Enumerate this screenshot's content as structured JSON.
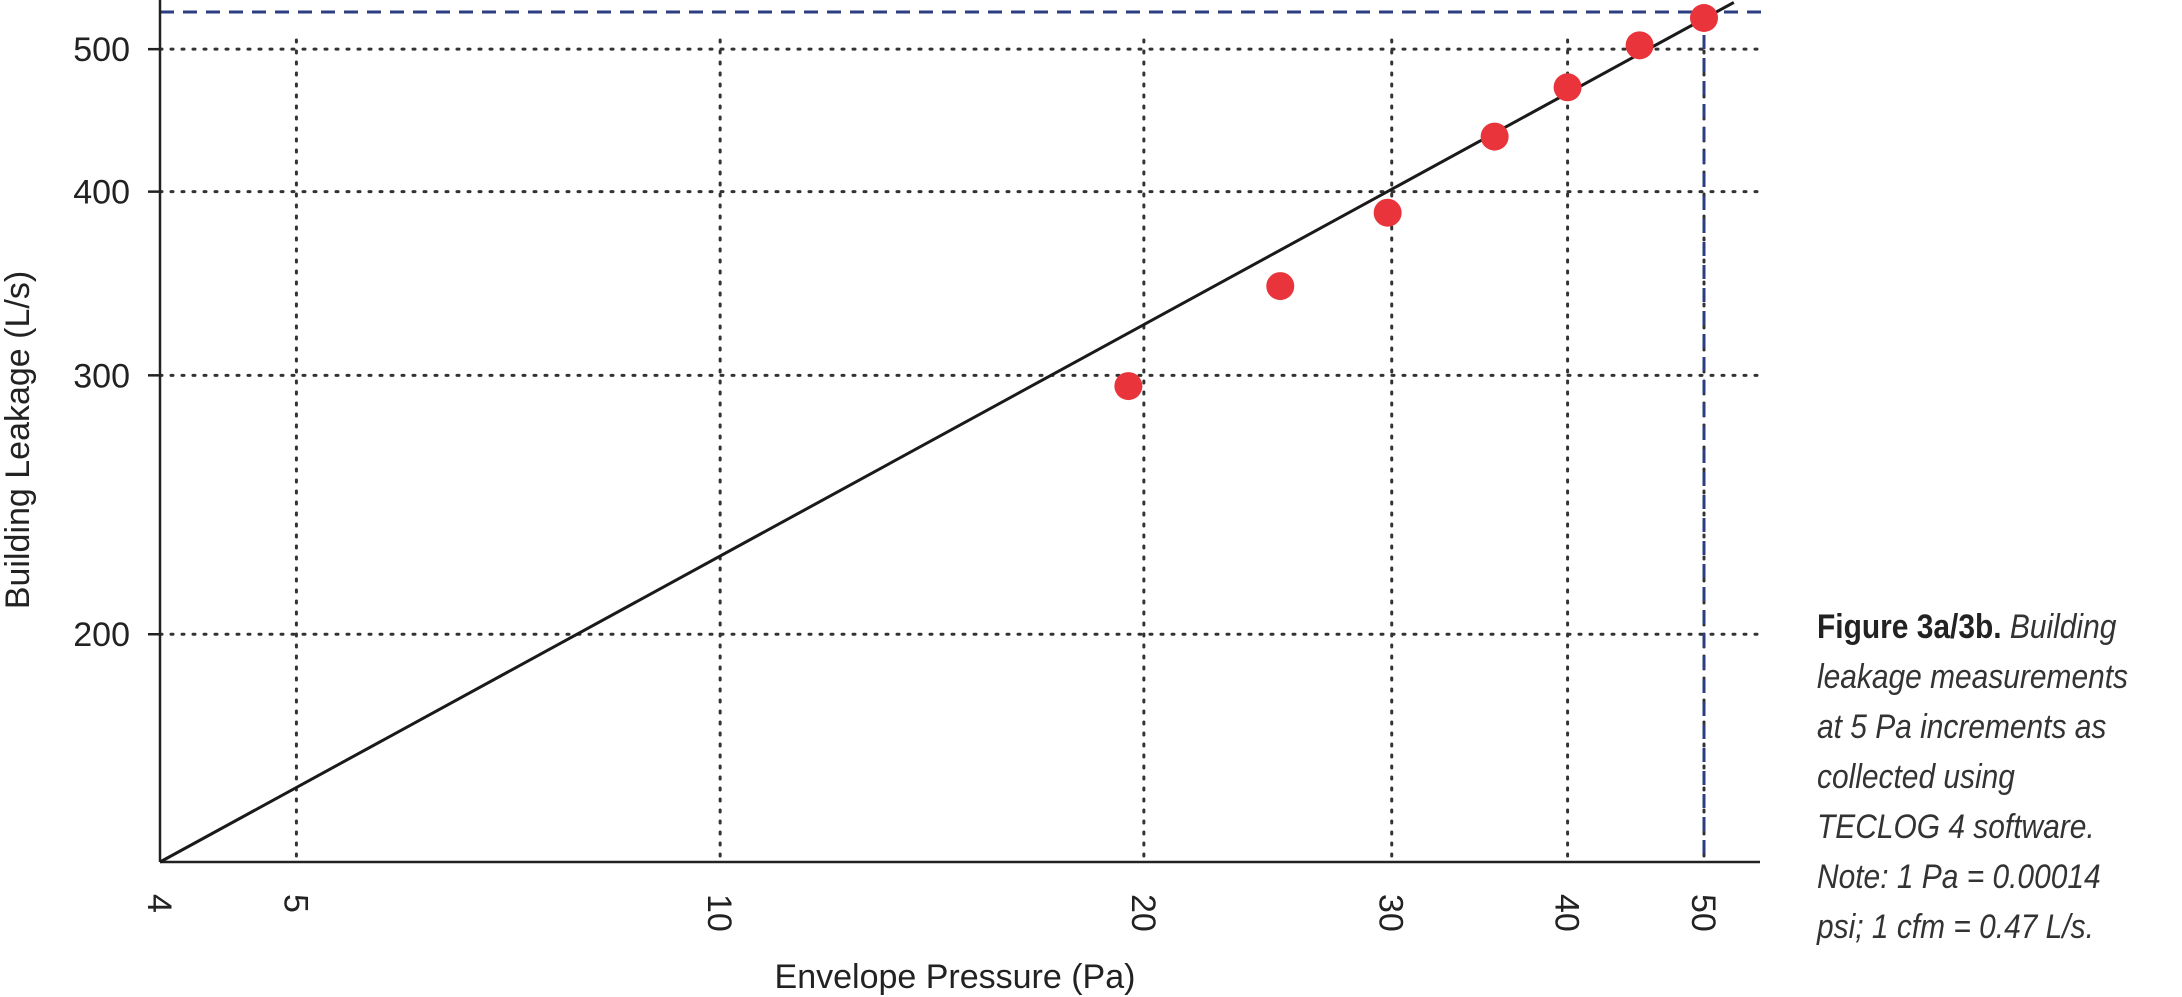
{
  "chart_data": {
    "type": "scatter",
    "xlabel": "Envelope Pressure (Pa)",
    "ylabel": "Building Leakage (L/s)",
    "xscale": "log",
    "yscale": "log",
    "xlim": [
      4,
      55
    ],
    "ylim": [
      140,
      530
    ],
    "x_ticks": [
      4,
      5,
      10,
      20,
      30,
      40,
      50
    ],
    "y_ticks": [
      200,
      300,
      400,
      500
    ],
    "grid": "dotted",
    "series": [
      {
        "type": "scatter",
        "color": "#e8343a",
        "points": [
          {
            "x": 19.5,
            "y": 295
          },
          {
            "x": 25,
            "y": 345
          },
          {
            "x": 29.8,
            "y": 387
          },
          {
            "x": 35.5,
            "y": 436
          },
          {
            "x": 40,
            "y": 471
          },
          {
            "x": 45,
            "y": 503
          },
          {
            "x": 50,
            "y": 525
          }
        ]
      },
      {
        "type": "line",
        "color": "#1a1a1a",
        "points": [
          {
            "x": 4,
            "y": 140
          },
          {
            "x": 52.5,
            "y": 538
          }
        ]
      }
    ],
    "reference_lines": {
      "color": "#2d3d82",
      "x": 50,
      "y": 525
    }
  },
  "caption": {
    "label": "Figure 3a/3b.",
    "text": "Building leakage measurements at 5 Pa increments as collected using TECLOG 4 software. Note: 1 Pa = 0.00014 psi; 1 cfm = 0.47 L/s."
  }
}
